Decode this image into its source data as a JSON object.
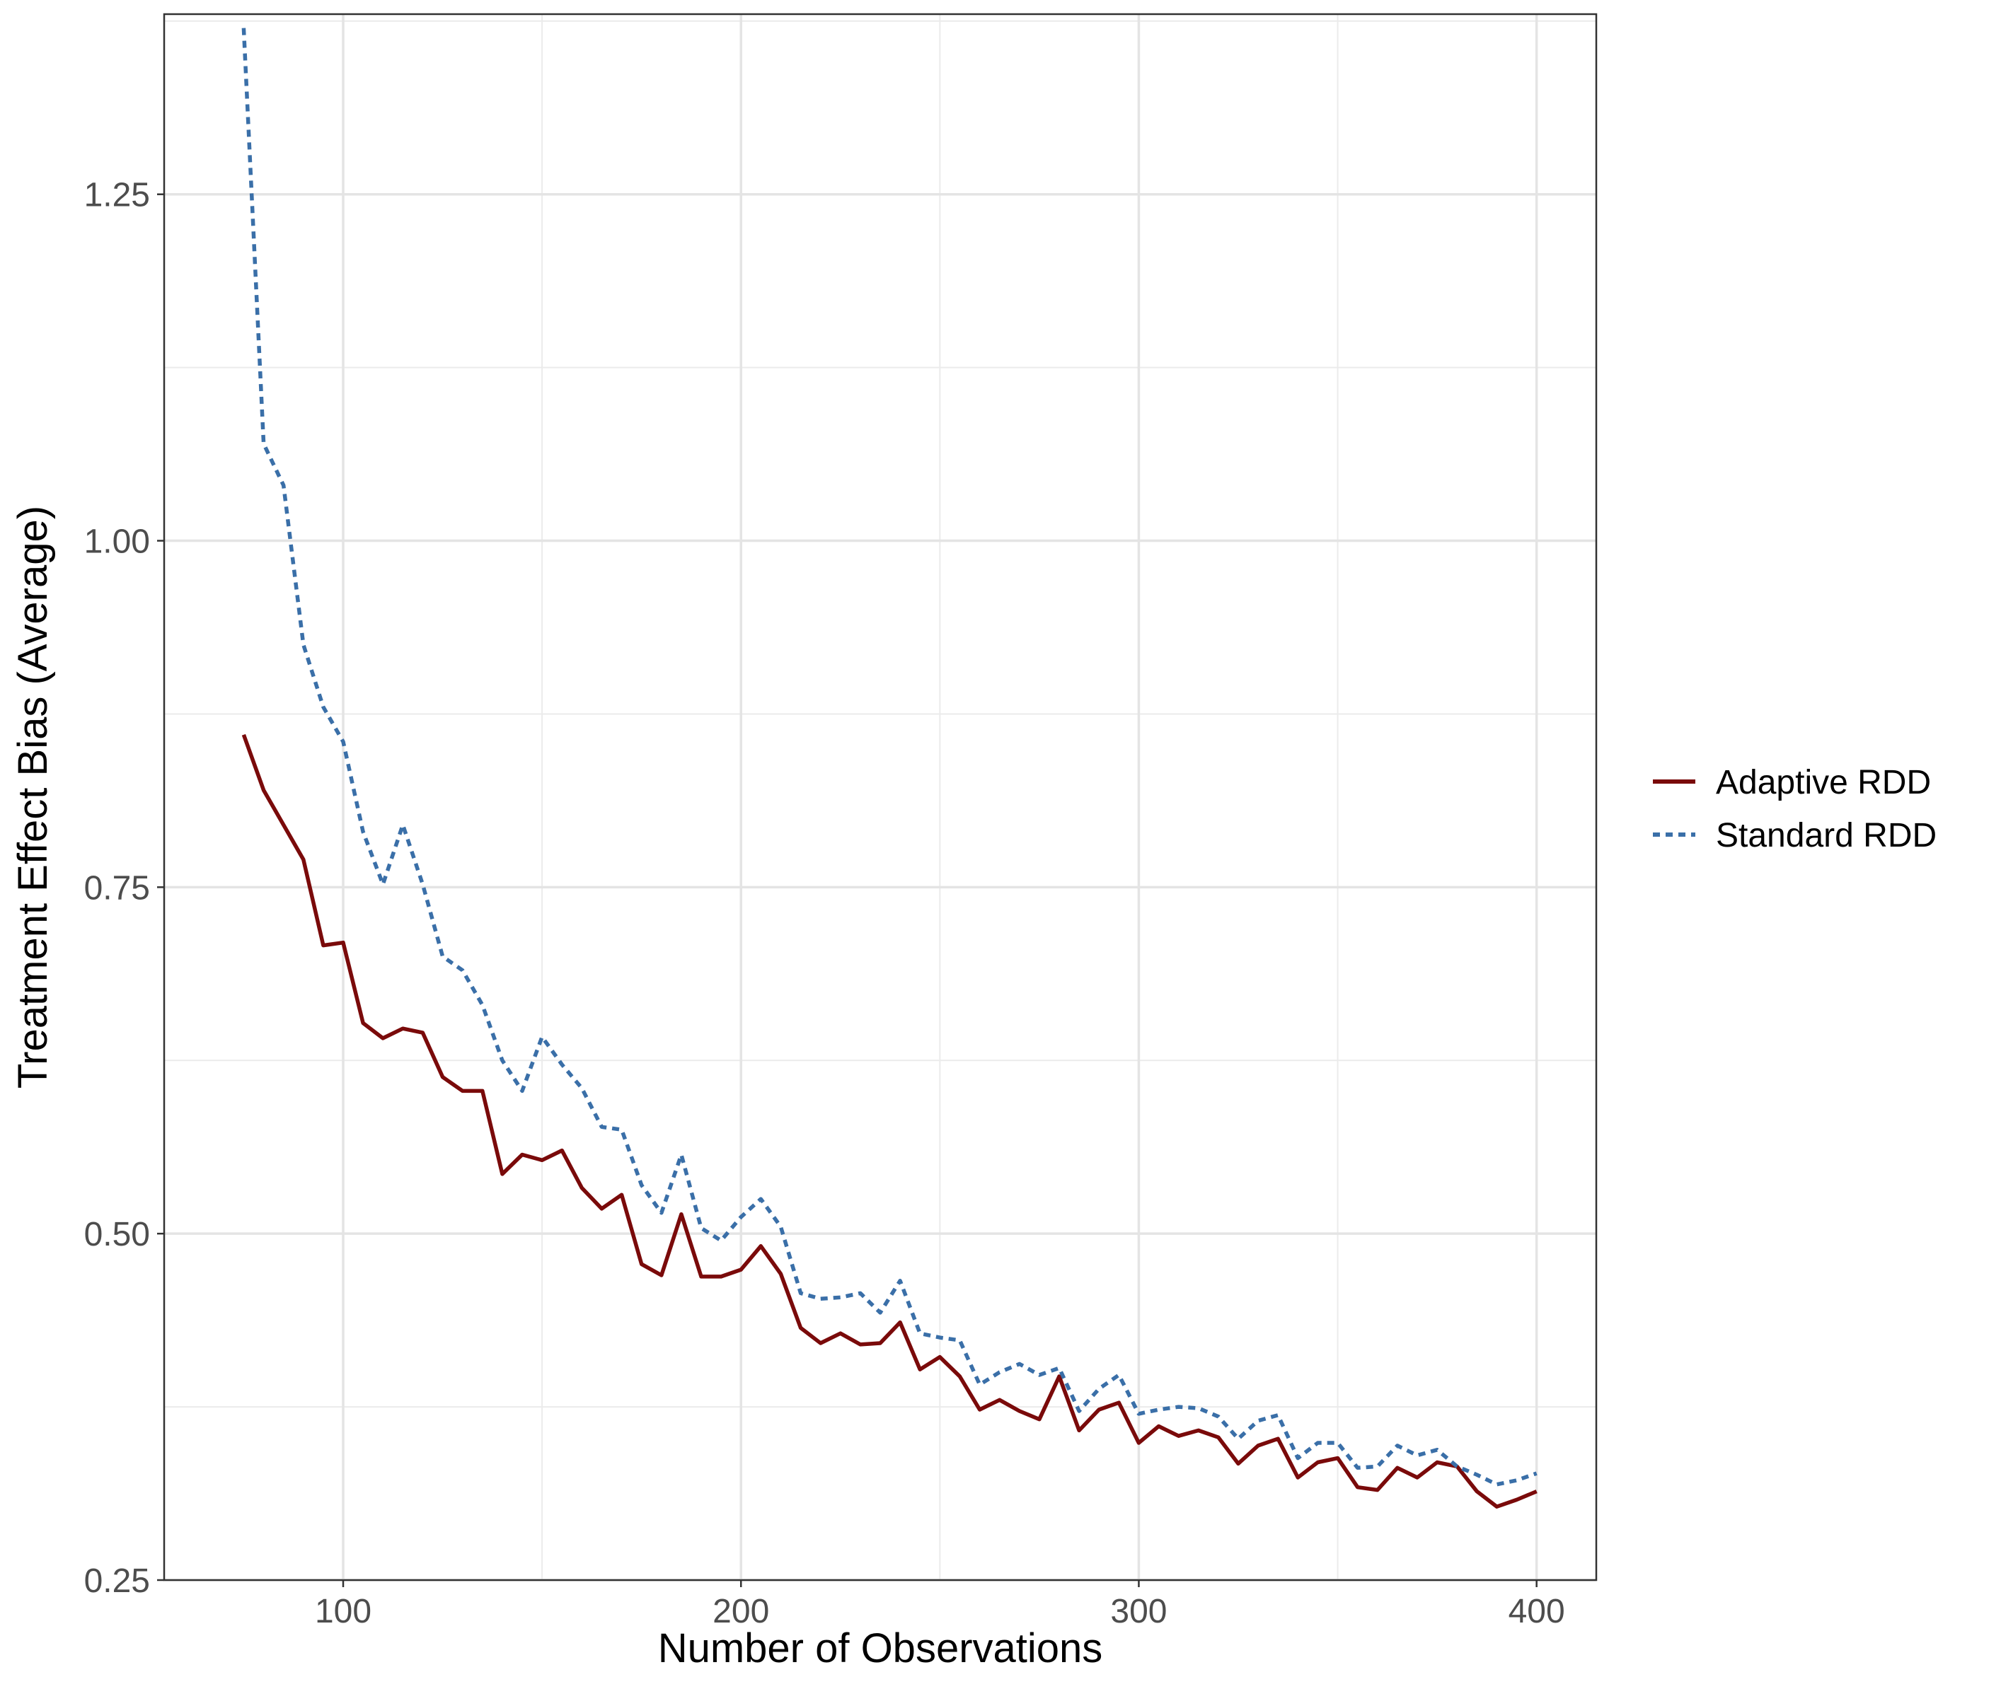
{
  "chart_data": {
    "type": "line",
    "title": "",
    "xlabel": "Number of Observations",
    "ylabel": "Treatment Effect Bias (Average)",
    "xlim": [
      55,
      415
    ],
    "ylim": [
      0.25,
      1.38
    ],
    "x_ticks": [
      100,
      200,
      300,
      400
    ],
    "x_tick_labels": [
      "100",
      "200",
      "300",
      "400"
    ],
    "y_ticks": [
      0.25,
      0.5,
      0.75,
      1.0,
      1.25
    ],
    "y_tick_labels": [
      "0.25",
      "0.50",
      "0.75",
      "1.00",
      "1.25"
    ],
    "grid": true,
    "legend_position": "right",
    "x": [
      75,
      80,
      85,
      90,
      95,
      100,
      105,
      110,
      115,
      120,
      125,
      130,
      135,
      140,
      145,
      150,
      155,
      160,
      165,
      170,
      175,
      180,
      185,
      190,
      195,
      200,
      205,
      210,
      215,
      220,
      225,
      230,
      235,
      240,
      245,
      250,
      255,
      260,
      265,
      270,
      275,
      280,
      285,
      290,
      295,
      300,
      305,
      310,
      315,
      320,
      325,
      330,
      335,
      340,
      345,
      350,
      355,
      360,
      365,
      370,
      375,
      380,
      385,
      390,
      395,
      400
    ],
    "series": [
      {
        "name": "Adaptive RDD",
        "color": "#7a0a0a",
        "dash": "solid",
        "values": [
          0.86,
          0.82,
          0.795,
          0.77,
          0.708,
          0.71,
          0.652,
          0.641,
          0.648,
          0.645,
          0.613,
          0.603,
          0.603,
          0.543,
          0.557,
          0.553,
          0.56,
          0.533,
          0.518,
          0.528,
          0.478,
          0.47,
          0.514,
          0.469,
          0.469,
          0.474,
          0.491,
          0.471,
          0.432,
          0.421,
          0.428,
          0.42,
          0.421,
          0.436,
          0.402,
          0.411,
          0.397,
          0.373,
          0.38,
          0.372,
          0.366,
          0.397,
          0.358,
          0.373,
          0.378,
          0.349,
          0.361,
          0.354,
          0.358,
          0.353,
          0.334,
          0.347,
          0.352,
          0.324,
          0.335,
          0.338,
          0.317,
          0.315,
          0.331,
          0.324,
          0.335,
          0.332,
          0.314,
          0.303,
          0.308,
          0.314
        ]
      },
      {
        "name": "Standard RDD",
        "color": "#3a6fa8",
        "dash": "dashed",
        "values": [
          1.37,
          1.07,
          1.04,
          0.925,
          0.88,
          0.855,
          0.79,
          0.752,
          0.795,
          0.752,
          0.7,
          0.69,
          0.665,
          0.625,
          0.603,
          0.642,
          0.622,
          0.605,
          0.577,
          0.575,
          0.535,
          0.515,
          0.557,
          0.504,
          0.495,
          0.512,
          0.525,
          0.505,
          0.457,
          0.453,
          0.454,
          0.457,
          0.443,
          0.466,
          0.428,
          0.425,
          0.423,
          0.391,
          0.4,
          0.406,
          0.398,
          0.403,
          0.372,
          0.388,
          0.398,
          0.37,
          0.373,
          0.375,
          0.374,
          0.368,
          0.352,
          0.365,
          0.369,
          0.338,
          0.349,
          0.349,
          0.331,
          0.332,
          0.347,
          0.34,
          0.344,
          0.332,
          0.326,
          0.319,
          0.322,
          0.327
        ]
      }
    ]
  }
}
